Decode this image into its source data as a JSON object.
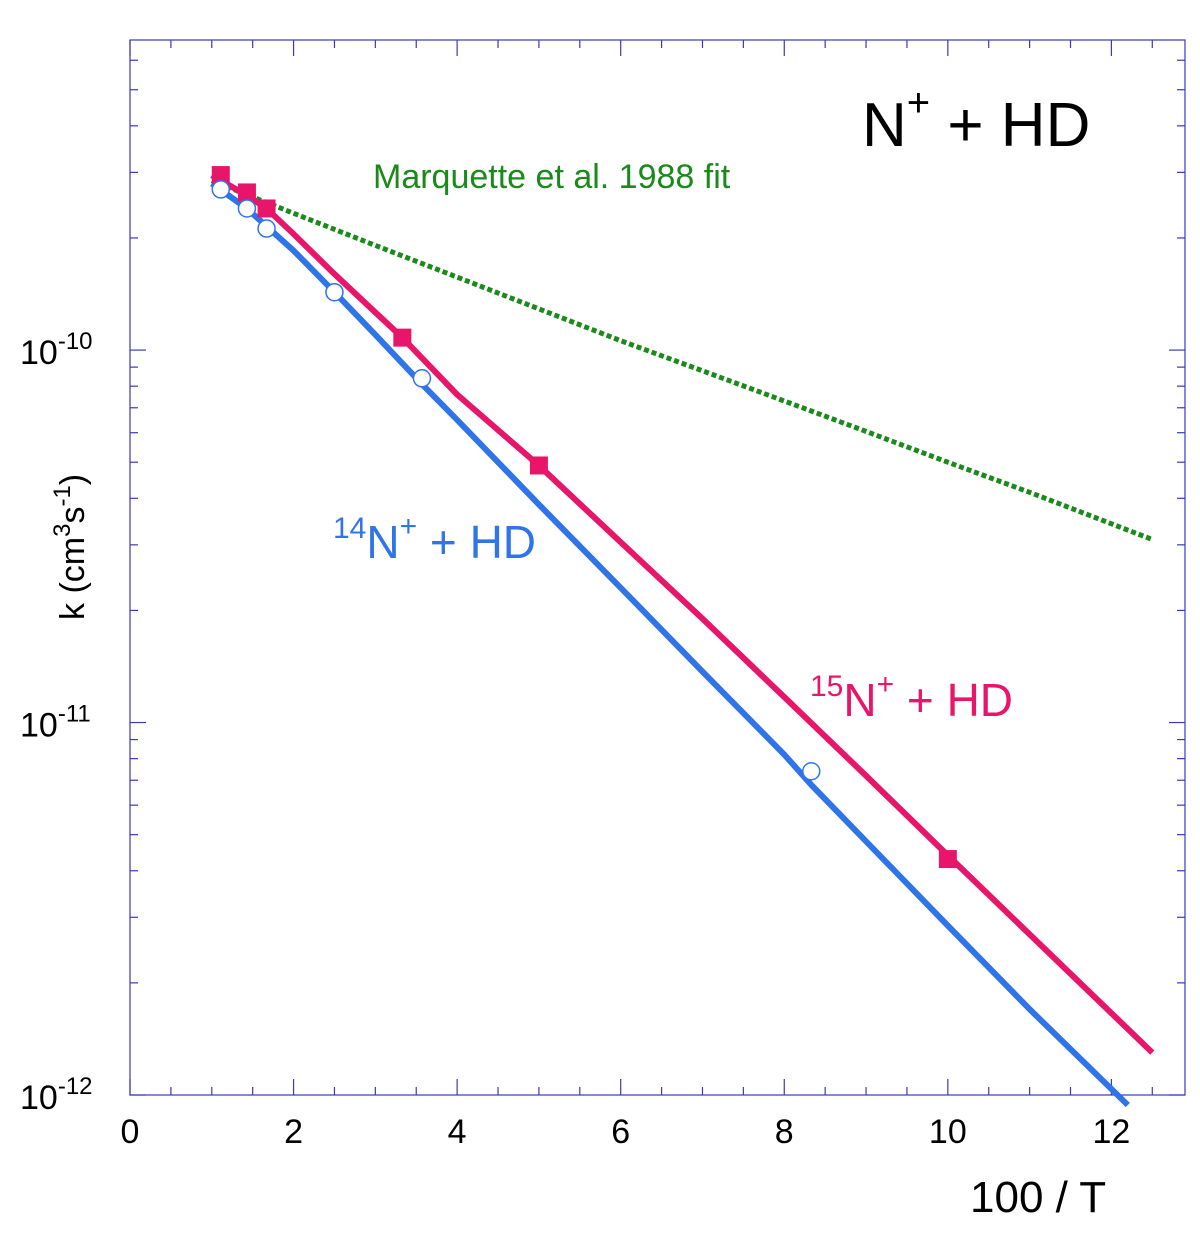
{
  "chart_data": {
    "type": "line",
    "title": "N+ + HD",
    "title_parts": {
      "base": "N",
      "sup": "+",
      "rest": " + HD"
    },
    "xlabel": "100 / T",
    "ylabel": {
      "base": "k (cm",
      "sup1": "3",
      "mid": "s",
      "sup2": "-1",
      "end": ")"
    },
    "xlim": [
      0,
      12.9
    ],
    "ylim": [
      1e-12,
      6.8e-10
    ],
    "yscale": "log",
    "x_ticks": [
      0,
      2,
      4,
      6,
      8,
      10,
      12
    ],
    "y_major_ticks": [
      {
        "value": 1e-10,
        "base": "10",
        "exp": "-10"
      },
      {
        "value": 1e-11,
        "base": "10",
        "exp": "-11"
      },
      {
        "value": 1e-12,
        "base": "10",
        "exp": "-12"
      }
    ],
    "legend": "none",
    "grid": false,
    "series": [
      {
        "name": "Marquette et al. 1988 fit",
        "style": "dotted",
        "color": "#1a8a1a",
        "x": [
          1.0,
          2.0,
          3.0,
          4.0,
          5.0,
          6.0,
          7.0,
          8.0,
          9.0,
          10.0,
          11.0,
          12.5
        ],
        "y": [
          2.85e-10,
          2.33e-10,
          1.91e-10,
          1.57e-10,
          1.29e-10,
          1.06e-10,
          8.8e-11,
          7.3e-11,
          6.05e-11,
          5e-11,
          4.15e-11,
          3.1e-11
        ]
      },
      {
        "name": "15N+ + HD",
        "label": {
          "sup": "15",
          "base": "N",
          "sup2": "+",
          "rest": " + HD"
        },
        "style": "solid",
        "color": "#e8166a",
        "marker": "filled-square",
        "x": [
          1.0,
          1.43,
          1.67,
          2.0,
          2.5,
          3.33,
          4.0,
          5.0,
          6.0,
          7.0,
          8.0,
          9.0,
          10.0,
          11.0,
          12.5
        ],
        "y": [
          2.95e-10,
          2.6e-10,
          2.4e-10,
          2.05e-10,
          1.6e-10,
          1.08e-10,
          7.6e-11,
          4.9e-11,
          3.05e-11,
          1.9e-11,
          1.17e-11,
          7.2e-12,
          4.4e-12,
          2.7e-12,
          1.3e-12
        ],
        "markers_x": [
          1.11,
          1.43,
          1.67,
          3.33,
          5.0,
          10.0
        ],
        "markers_y": [
          2.95e-10,
          2.65e-10,
          2.4e-10,
          1.08e-10,
          4.9e-11,
          4.3e-12
        ]
      },
      {
        "name": "14N+ + HD",
        "label": {
          "sup": "14",
          "base": "N",
          "sup2": "+",
          "rest": " + HD"
        },
        "style": "solid",
        "color": "#2f74e8",
        "marker": "open-circle",
        "x": [
          1.0,
          1.43,
          1.67,
          2.0,
          2.5,
          3.0,
          3.57,
          4.0,
          5.0,
          6.0,
          7.0,
          8.0,
          8.33,
          9.0,
          10.0,
          11.0,
          12.2
        ],
        "y": [
          2.8e-10,
          2.4e-10,
          2.15e-10,
          1.85e-10,
          1.43e-10,
          1.1e-10,
          8.1e-11,
          6.5e-11,
          3.85e-11,
          2.3e-11,
          1.37e-11,
          8.2e-12,
          6.8e-12,
          4.8e-12,
          2.85e-12,
          1.7e-12,
          9.4e-13
        ],
        "markers_x": [
          1.11,
          1.43,
          1.67,
          2.5,
          3.57,
          8.33
        ],
        "markers_y": [
          2.7e-10,
          2.4e-10,
          2.12e-10,
          1.43e-10,
          8.4e-11,
          7.4e-12
        ]
      }
    ]
  }
}
